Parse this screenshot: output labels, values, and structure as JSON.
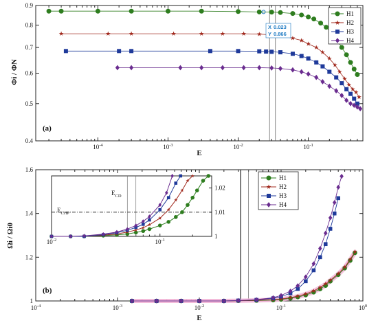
{
  "figure_panels": [
    "(a)",
    "(b)"
  ],
  "colors": {
    "H1": "#2e7d1f",
    "H2": "#a0281c",
    "H3": "#1f3a9a",
    "H4": "#6a2c8f",
    "highlight": "#f2b8d8",
    "cursor": "#1a78c2"
  },
  "chart_data": [
    {
      "type": "line",
      "panel": "(a)",
      "xlabel": "E",
      "ylabel": "Φi / ΦN",
      "xscale": "log",
      "yscale": "log",
      "xlim": [
        1.3e-05,
        0.6
      ],
      "ylim": [
        0.4,
        0.9
      ],
      "xticks": [
        "10^-4",
        "10^-3",
        "10^-2",
        "10^-1"
      ],
      "yticks": [
        "0.4",
        "0.5",
        "0.6",
        "0.7",
        "0.8",
        "0.9"
      ],
      "legend": {
        "placement": "top-right",
        "entries": [
          "H1",
          "H2",
          "H3",
          "H4"
        ]
      },
      "cursor_readout": {
        "x_label": "X",
        "x_value": "0.023",
        "y_label": "Y",
        "y_value": "0.866"
      },
      "reference_lines_x": [
        0.028,
        0.034
      ],
      "grid": false,
      "series": [
        {
          "name": "H1",
          "marker": "circle",
          "color": "#2e7d1f",
          "x": [
            2e-05,
            3e-05,
            0.0001,
            0.0003,
            0.001,
            0.003,
            0.01,
            0.02,
            0.03,
            0.04,
            0.06,
            0.08,
            0.1,
            0.12,
            0.15,
            0.18,
            0.22,
            0.26,
            0.3,
            0.35,
            0.4,
            0.45,
            0.5
          ],
          "y": [
            0.87,
            0.87,
            0.87,
            0.87,
            0.87,
            0.87,
            0.868,
            0.866,
            0.865,
            0.863,
            0.858,
            0.85,
            0.84,
            0.83,
            0.81,
            0.79,
            0.76,
            0.73,
            0.7,
            0.67,
            0.64,
            0.615,
            0.595
          ]
        },
        {
          "name": "H2",
          "marker": "star",
          "color": "#a0281c",
          "x": [
            3e-05,
            0.00014,
            0.0003,
            0.0012,
            0.003,
            0.006,
            0.012,
            0.02,
            0.03,
            0.04,
            0.06,
            0.08,
            0.1,
            0.13,
            0.16,
            0.2,
            0.24,
            0.28,
            0.33,
            0.38,
            0.43,
            0.48,
            0.53
          ],
          "y": [
            0.76,
            0.76,
            0.76,
            0.76,
            0.76,
            0.76,
            0.76,
            0.758,
            0.755,
            0.75,
            0.74,
            0.73,
            0.715,
            0.7,
            0.68,
            0.655,
            0.63,
            0.605,
            0.58,
            0.56,
            0.545,
            0.535,
            0.52
          ]
        },
        {
          "name": "H3",
          "marker": "square",
          "color": "#1f3a9a",
          "x": [
            3.5e-05,
            0.0002,
            0.0003,
            0.004,
            0.01,
            0.02,
            0.025,
            0.03,
            0.04,
            0.06,
            0.08,
            0.1,
            0.13,
            0.16,
            0.2,
            0.25,
            0.3,
            0.35,
            0.4,
            0.45,
            0.5
          ],
          "y": [
            0.685,
            0.685,
            0.685,
            0.685,
            0.685,
            0.684,
            0.683,
            0.682,
            0.68,
            0.674,
            0.665,
            0.655,
            0.64,
            0.625,
            0.605,
            0.585,
            0.565,
            0.545,
            0.53,
            0.515,
            0.5
          ]
        },
        {
          "name": "H4",
          "marker": "diamond",
          "color": "#6a2c8f",
          "x": [
            0.00019,
            0.0003,
            0.0015,
            0.003,
            0.006,
            0.012,
            0.02,
            0.03,
            0.04,
            0.06,
            0.08,
            0.1,
            0.13,
            0.16,
            0.2,
            0.25,
            0.3,
            0.35,
            0.4,
            0.45,
            0.5,
            0.55
          ],
          "y": [
            0.62,
            0.62,
            0.62,
            0.62,
            0.62,
            0.62,
            0.62,
            0.619,
            0.617,
            0.612,
            0.605,
            0.597,
            0.585,
            0.57,
            0.555,
            0.54,
            0.525,
            0.51,
            0.5,
            0.495,
            0.49,
            0.485
          ]
        }
      ]
    },
    {
      "type": "line",
      "panel": "(b)",
      "xlabel": "E",
      "ylabel": "Ωi / Ωi0",
      "xscale": "log",
      "xlim": [
        0.0001,
        1
      ],
      "ylim": [
        1,
        1.6
      ],
      "xticks": [
        "10^-4",
        "10^-3",
        "10^-2",
        "10^-1",
        "10^0"
      ],
      "yticks": [
        "1",
        "1.2",
        "1.4",
        "1.6"
      ],
      "legend": {
        "placement": "top-right",
        "entries": [
          "H1",
          "H2",
          "H3",
          "H4"
        ]
      },
      "reference_lines_x": [
        0.032,
        0.04
      ],
      "grid": false,
      "series": [
        {
          "name": "H1",
          "marker": "circle",
          "color": "#2e7d1f",
          "x": [
            0.0015,
            0.003,
            0.006,
            0.01,
            0.02,
            0.03,
            0.05,
            0.08,
            0.1,
            0.13,
            0.16,
            0.2,
            0.25,
            0.3,
            0.35,
            0.4,
            0.5,
            0.6,
            0.7,
            0.8
          ],
          "y": [
            1,
            1,
            1,
            1,
            1,
            1.001,
            1.002,
            1.004,
            1.007,
            1.012,
            1.018,
            1.027,
            1.04,
            1.055,
            1.07,
            1.09,
            1.12,
            1.15,
            1.185,
            1.22
          ]
        },
        {
          "name": "H2",
          "marker": "star",
          "color": "#a0281c",
          "x": [
            0.0015,
            0.003,
            0.006,
            0.01,
            0.02,
            0.03,
            0.05,
            0.08,
            0.1,
            0.13,
            0.16,
            0.2,
            0.25,
            0.3,
            0.35,
            0.4,
            0.5,
            0.6,
            0.7,
            0.8
          ],
          "y": [
            1,
            1,
            1,
            1,
            1,
            1.001,
            1.003,
            1.006,
            1.009,
            1.015,
            1.022,
            1.032,
            1.046,
            1.062,
            1.078,
            1.095,
            1.125,
            1.155,
            1.19,
            1.225
          ]
        },
        {
          "name": "H3",
          "marker": "square",
          "color": "#1f3a9a",
          "x": [
            0.0015,
            0.003,
            0.006,
            0.01,
            0.02,
            0.03,
            0.05,
            0.08,
            0.1,
            0.13,
            0.16,
            0.2,
            0.25,
            0.3,
            0.35,
            0.4,
            0.45,
            0.5
          ],
          "y": [
            1,
            1,
            1,
            1,
            1,
            1.002,
            1.005,
            1.012,
            1.02,
            1.035,
            1.055,
            1.09,
            1.14,
            1.2,
            1.26,
            1.33,
            1.4,
            1.47
          ]
        },
        {
          "name": "H4",
          "marker": "diamond",
          "color": "#6a2c8f",
          "x": [
            0.0015,
            0.003,
            0.006,
            0.01,
            0.02,
            0.03,
            0.05,
            0.08,
            0.1,
            0.13,
            0.16,
            0.2,
            0.25,
            0.3,
            0.35,
            0.4,
            0.45,
            0.5,
            0.55
          ],
          "y": [
            1,
            1,
            1,
            1,
            1,
            1.002,
            1.006,
            1.015,
            1.025,
            1.045,
            1.07,
            1.11,
            1.17,
            1.24,
            1.31,
            1.38,
            1.45,
            1.52,
            1.57
          ]
        }
      ]
    },
    {
      "type": "line",
      "panel": "(b) inset",
      "xscale": "log",
      "xlim": [
        0.01,
        0.3
      ],
      "ylim": [
        1,
        1.025
      ],
      "xticks": [
        "10^-2",
        "10^-1"
      ],
      "yticks": [
        "1",
        "1.01",
        "1.02"
      ],
      "labels": {
        "cd": "E",
        "cd_sub": "CD",
        "chp": "E",
        "chp_sub": "CHP"
      },
      "chp_level": 1.01,
      "cd_lines_x": [
        0.05,
        0.06
      ],
      "series": [
        {
          "name": "H1",
          "color": "#2e7d1f",
          "x": [
            0.01,
            0.015,
            0.02,
            0.03,
            0.04,
            0.05,
            0.06,
            0.07,
            0.08,
            0.1,
            0.12,
            0.14,
            0.16,
            0.18,
            0.2,
            0.22,
            0.25,
            0.28
          ],
          "y": [
            1,
            1,
            1,
            1.0003,
            1.0006,
            1.001,
            1.0016,
            1.0022,
            1.003,
            1.0045,
            1.006,
            1.008,
            1.01,
            1.013,
            1.016,
            1.019,
            1.023,
            1.025
          ]
        },
        {
          "name": "H2",
          "color": "#a0281c",
          "x": [
            0.01,
            0.015,
            0.02,
            0.03,
            0.04,
            0.05,
            0.06,
            0.07,
            0.08,
            0.1,
            0.12,
            0.14,
            0.16,
            0.18,
            0.2
          ],
          "y": [
            1,
            1,
            1,
            1.0005,
            1.001,
            1.0018,
            1.0026,
            1.0036,
            1.0048,
            1.0075,
            1.011,
            1.015,
            1.019,
            1.023,
            1.025
          ]
        },
        {
          "name": "H3",
          "color": "#1f3a9a",
          "x": [
            0.01,
            0.015,
            0.02,
            0.03,
            0.04,
            0.05,
            0.06,
            0.07,
            0.08,
            0.1,
            0.12,
            0.14,
            0.155
          ],
          "y": [
            1,
            1,
            1,
            1.0007,
            1.0015,
            1.0025,
            1.0037,
            1.005,
            1.0068,
            1.011,
            1.016,
            1.022,
            1.025
          ]
        },
        {
          "name": "H4",
          "color": "#6a2c8f",
          "x": [
            0.01,
            0.015,
            0.02,
            0.03,
            0.04,
            0.05,
            0.06,
            0.07,
            0.08,
            0.1,
            0.115,
            0.13
          ],
          "y": [
            1,
            1,
            1.0002,
            1.0009,
            1.0018,
            1.003,
            1.0045,
            1.0062,
            1.0082,
            1.013,
            1.018,
            1.025
          ]
        }
      ]
    }
  ]
}
